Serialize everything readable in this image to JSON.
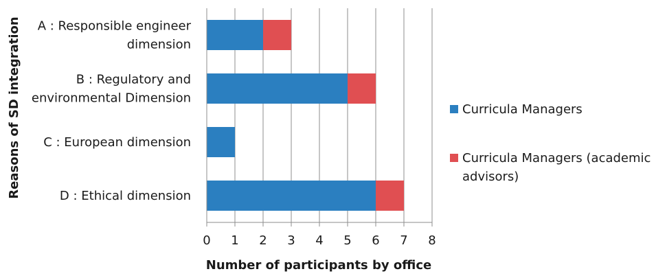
{
  "chart_data": {
    "type": "bar",
    "orientation": "horizontal",
    "stacked": true,
    "title": "",
    "xlabel": "Number of participants by office",
    "ylabel": "Reasons of SD integration",
    "xlim": [
      0,
      8
    ],
    "xticks": [
      "0",
      "1",
      "2",
      "3",
      "4",
      "5",
      "6",
      "7",
      "8"
    ],
    "grid": "vertical",
    "legend_position": "right",
    "categories": [
      [
        "A : Responsible engineer",
        "dimension"
      ],
      [
        "B : Regulatory and",
        "environmental Dimension"
      ],
      [
        "C : European dimension"
      ],
      [
        "D : Ethical dimension"
      ]
    ],
    "series": [
      {
        "name": "Curricula Managers",
        "legend_lines": [
          "Curricula Managers"
        ],
        "color": "#2b7fc0",
        "values": [
          2,
          5,
          1,
          6
        ]
      },
      {
        "name": "Curricula Managers (academic advisors)",
        "legend_lines": [
          "Curricula Managers (academic",
          "advisors)"
        ],
        "color": "#e04f52",
        "values": [
          1,
          1,
          0,
          1
        ]
      }
    ]
  }
}
